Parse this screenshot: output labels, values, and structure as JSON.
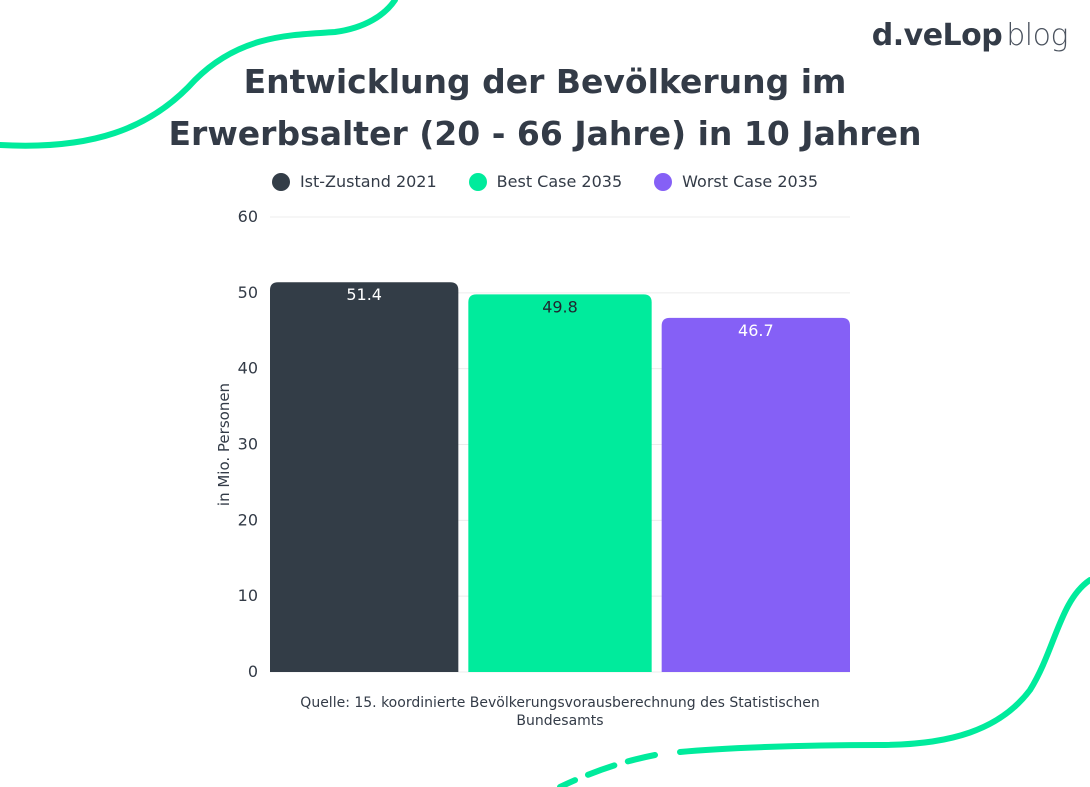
{
  "brand": {
    "word": "d.veLop",
    "suffix": "blog"
  },
  "colors": {
    "accent": "#00eb9c",
    "series_2021": "#333d47",
    "series_best": "#00eb9c",
    "series_worst": "#8560f6"
  },
  "legend": [
    {
      "label": "Ist-Zustand 2021",
      "color": "#333d47"
    },
    {
      "label": "Best Case 2035",
      "color": "#00eb9c"
    },
    {
      "label": "Worst Case 2035",
      "color": "#8560f6"
    }
  ],
  "chart_data": {
    "type": "bar",
    "title": "Entwicklung der Bevölkerung im Erwerbsalter (20 - 66 Jahre) in 10 Jahren",
    "title_lines": [
      "Entwicklung der Bevölkerung im",
      "Erwerbsalter (20 - 66 Jahre) in 10 Jahren"
    ],
    "categories": [
      "Ist-Zustand 2021",
      "Best Case 2035",
      "Worst Case 2035"
    ],
    "values": [
      51.4,
      49.8,
      46.7
    ],
    "value_labels": [
      "51.4",
      "49.8",
      "46.7"
    ],
    "colors": [
      "#333d47",
      "#00eb9c",
      "#8560f6"
    ],
    "label_colors": [
      "#ffffff",
      "#1f2630",
      "#ffffff"
    ],
    "xlabel": "",
    "ylabel": "in Mio. Personen",
    "ylim": [
      0,
      60
    ],
    "yticks": [
      0,
      10,
      20,
      30,
      40,
      50,
      60
    ],
    "grid": true,
    "legend_position": "top-center"
  },
  "source": "Quelle: 15. koordinierte Bevölkerungsvorausberechnung des Statistischen Bundesamts"
}
